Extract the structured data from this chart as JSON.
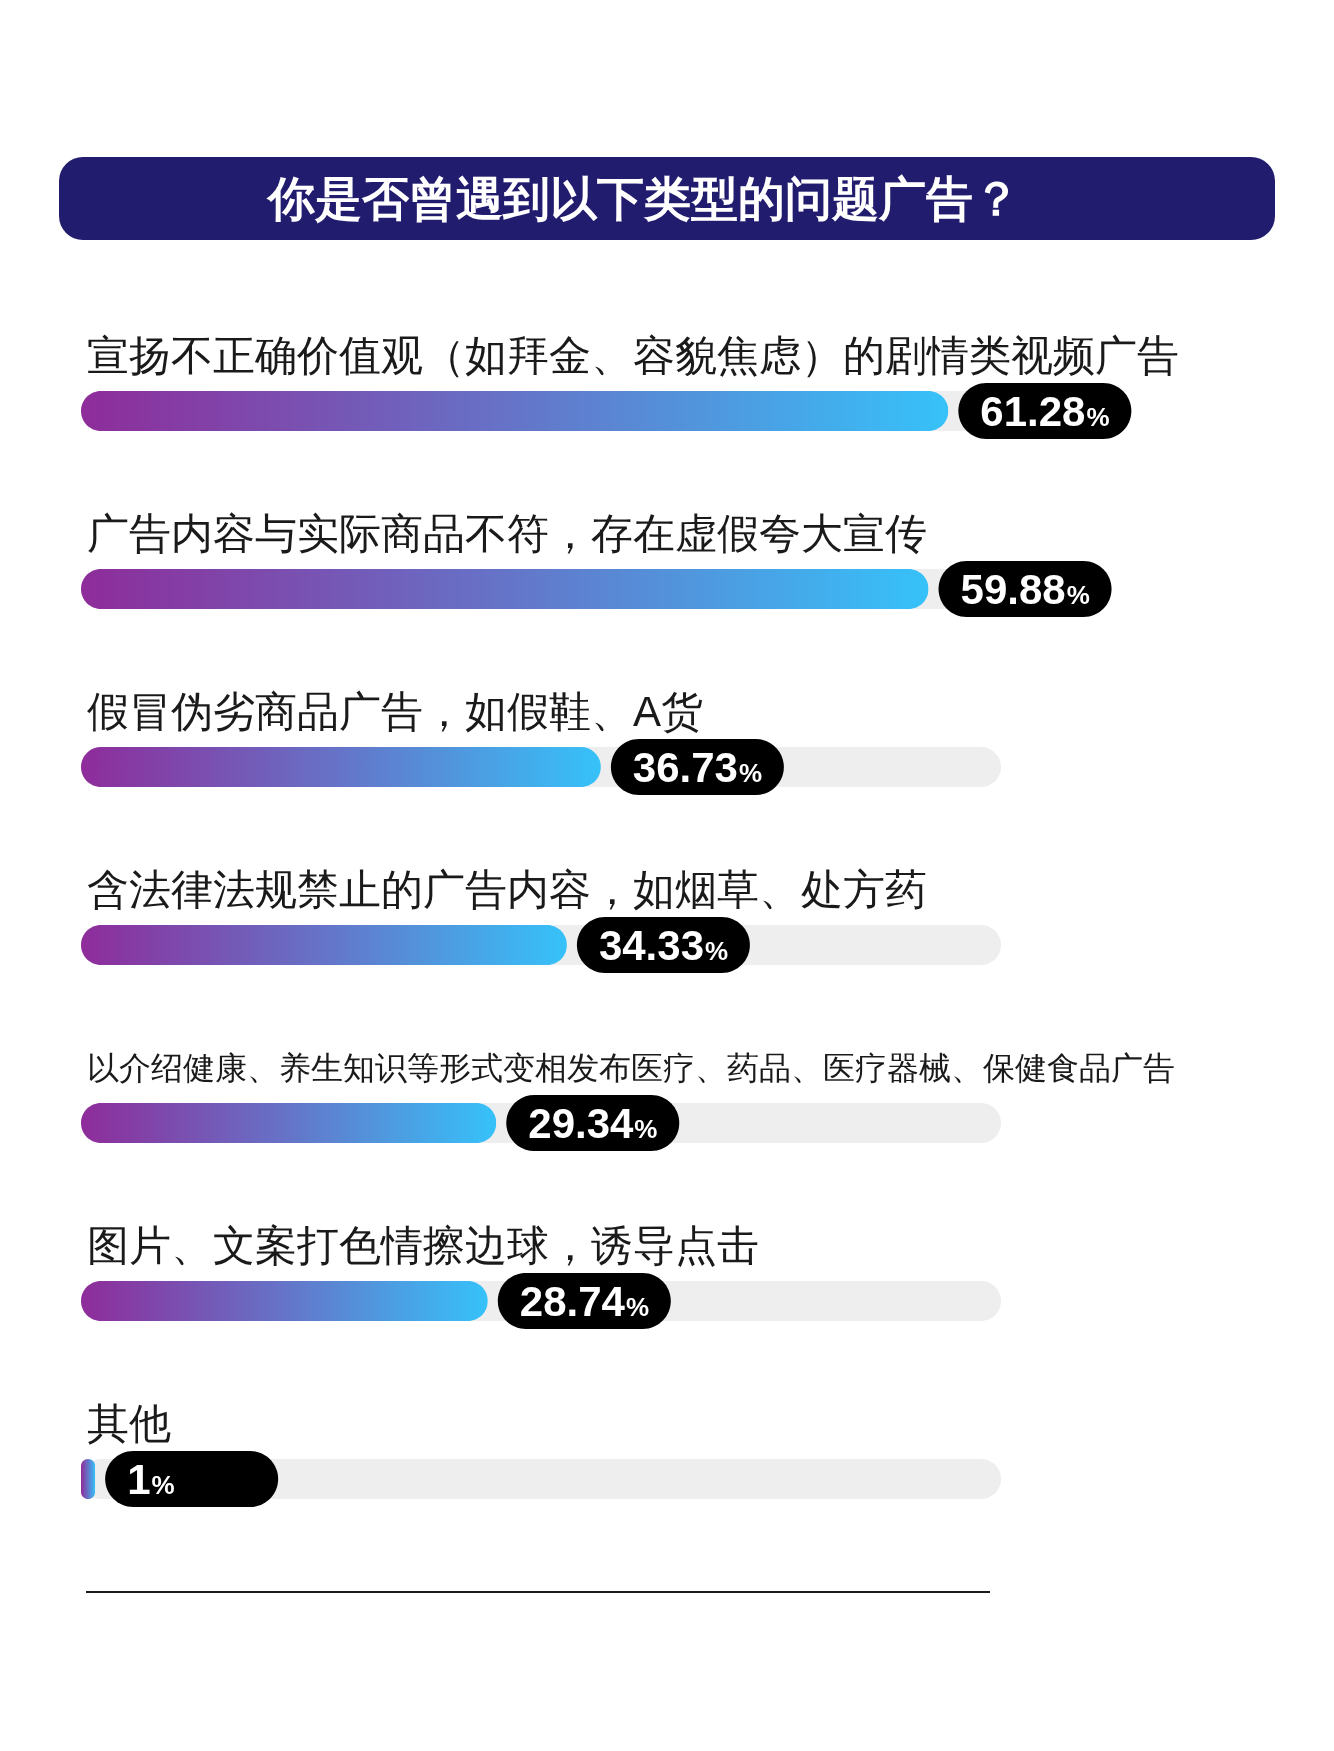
{
  "chart_data": {
    "type": "bar",
    "orientation": "horizontal",
    "title": "你是否曾遇到以下类型的问题广告？",
    "categories": [
      "宣扬不正确价值观（如拜金、容貌焦虑）的剧情类视频广告",
      "广告内容与实际商品不符，存在虚假夸大宣传",
      "假冒伪劣商品广告，如假鞋、A货",
      "含法律法规禁止的广告内容，如烟草、处方药",
      "以介绍健康、养生知识等形式变相发布医疗、药品、医疗器械、保健食品广告",
      "图片、文案打色情擦边球，诱导点击",
      "其他"
    ],
    "series": [
      {
        "color": "#6574c8",
        "values": [
          61.28,
          59.88,
          36.73,
          34.33,
          29.34,
          28.74,
          1
        ]
      }
    ],
    "data_labels": true,
    "value_labels": [
      "61.28%",
      "59.88%",
      "36.73%",
      "34.33%",
      "29.34%",
      "28.74%",
      "1%"
    ],
    "tick_labels": "y"
  }
}
